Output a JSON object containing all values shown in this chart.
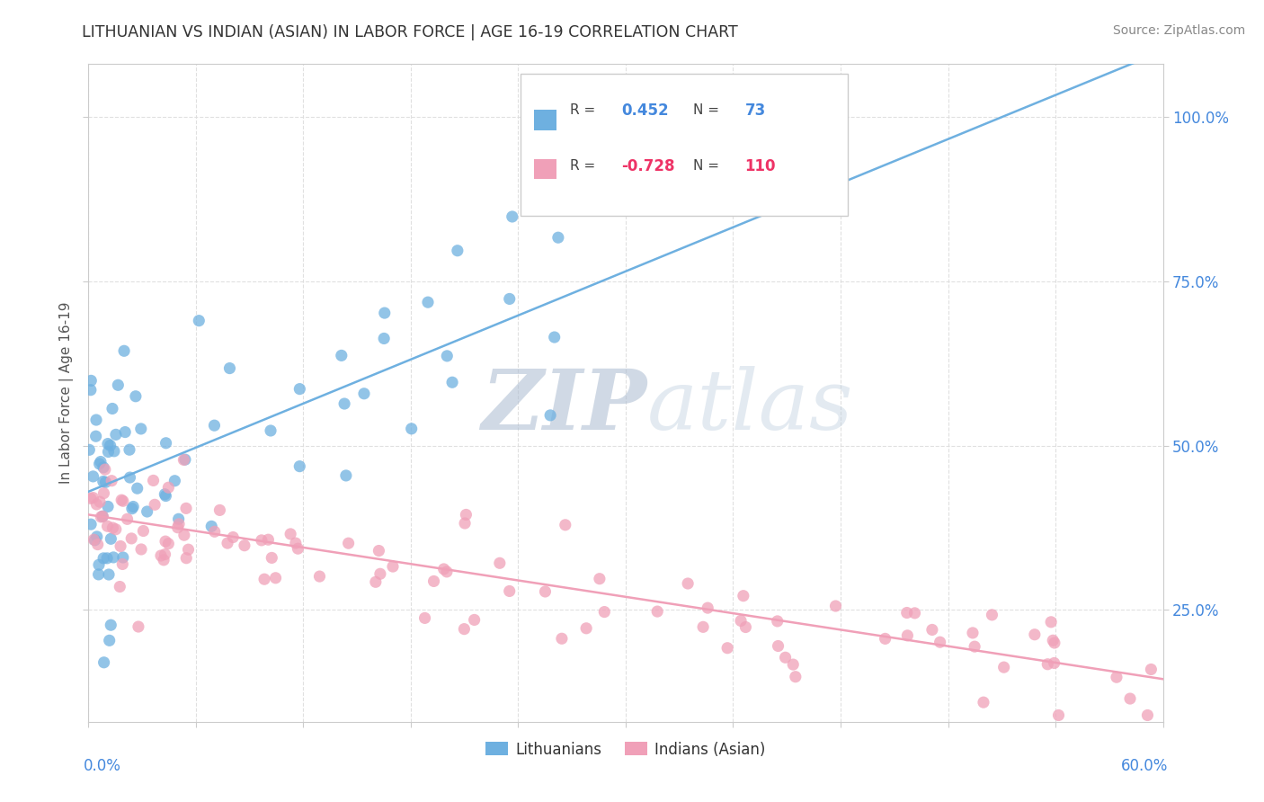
{
  "title": "LITHUANIAN VS INDIAN (ASIAN) IN LABOR FORCE | AGE 16-19 CORRELATION CHART",
  "source": "Source: ZipAtlas.com",
  "ylabel": "In Labor Force | Age 16-19",
  "right_yticklabels": [
    "25.0%",
    "50.0%",
    "75.0%",
    "100.0%"
  ],
  "right_yticks": [
    0.25,
    0.5,
    0.75,
    1.0
  ],
  "xlim": [
    0.0,
    0.6
  ],
  "ylim": [
    0.08,
    1.08
  ],
  "lithuanian_R": 0.452,
  "lithuanian_N": 73,
  "indian_R": -0.728,
  "indian_N": 110,
  "lit_line_x0": 0.0,
  "lit_line_y0": 0.43,
  "lit_line_x1": 0.6,
  "lit_line_y1": 1.1,
  "ind_line_x0": 0.0,
  "ind_line_y0": 0.395,
  "ind_line_x1": 0.6,
  "ind_line_y1": 0.145,
  "lithuanian_color": "#6EB0E0",
  "indian_color": "#F0A0B8",
  "legend_label_lit": "Lithuanians",
  "legend_label_ind": "Indians (Asian)",
  "bg_color": "#FFFFFF",
  "grid_color": "#DDDDDD",
  "title_color": "#333333",
  "axis_label_color": "#4488DD",
  "r_color_lit": "#4488DD",
  "r_color_ind": "#EE3366",
  "n_color_lit": "#4488DD",
  "n_color_ind": "#EE3366"
}
